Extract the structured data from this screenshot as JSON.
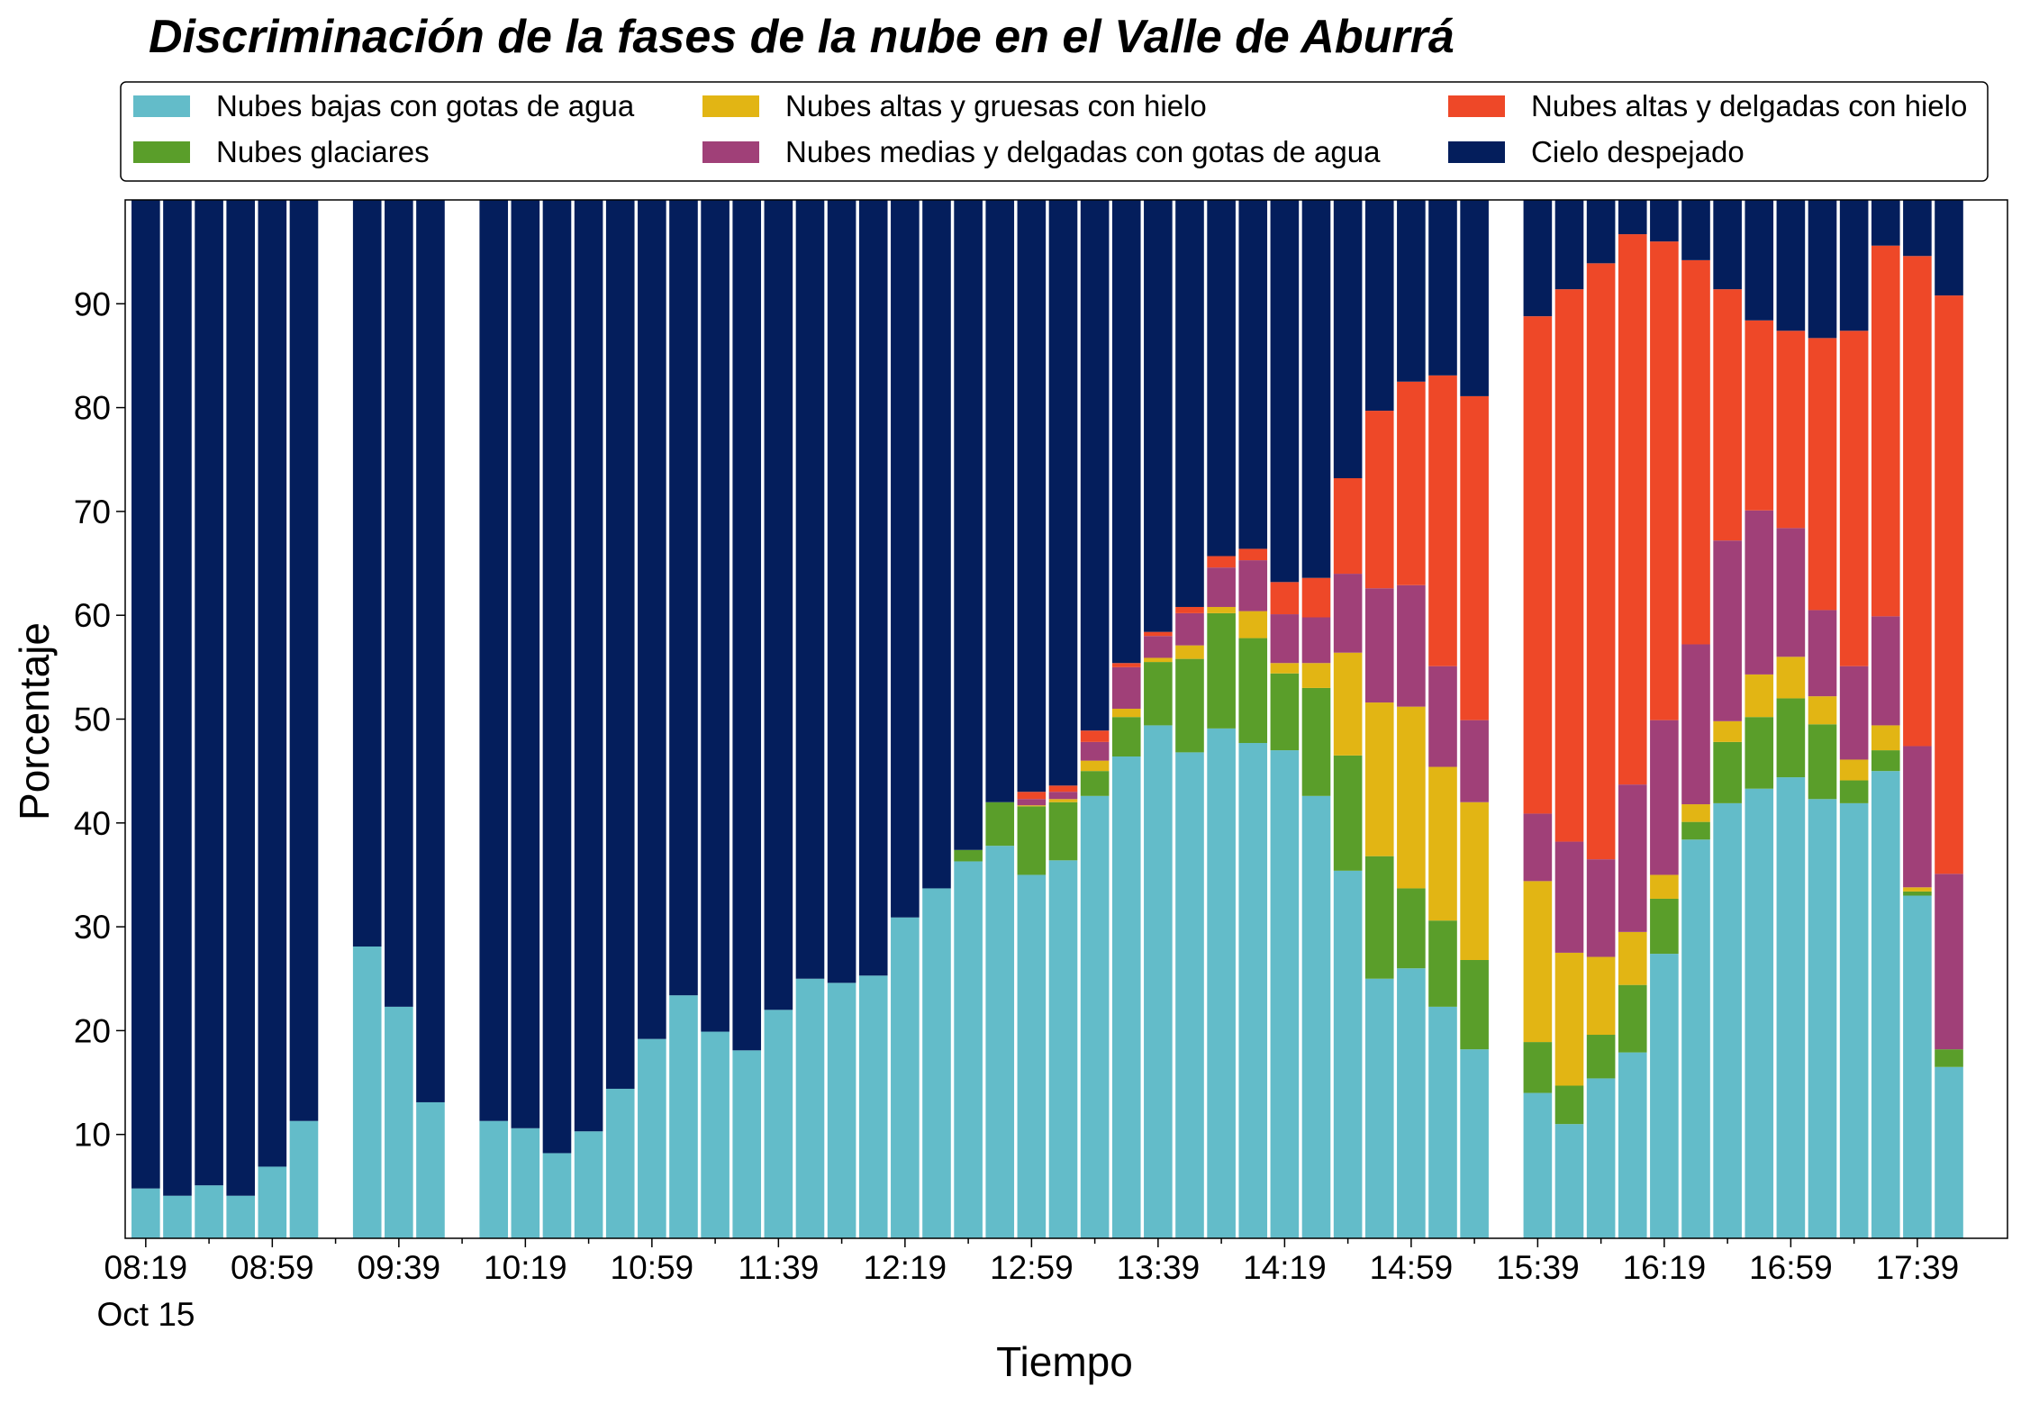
{
  "chart_data": {
    "type": "stacked_bar",
    "title": "Discriminación de la fases de la nube en el Valle de Aburrá",
    "xlabel": "Tiempo",
    "ylabel": "Porcentaje",
    "date_label": "Oct 15",
    "categories": [
      "08:19",
      null,
      null,
      null,
      "08:59",
      null,
      null,
      null,
      "09:39",
      null,
      null,
      null,
      "10:19",
      null,
      null,
      null,
      "10:59",
      null,
      null,
      null,
      "11:39",
      null,
      null,
      null,
      "12:19",
      null,
      null,
      null,
      "12:59",
      null,
      null,
      null,
      "13:39",
      null,
      null,
      null,
      "14:19",
      null,
      null,
      null,
      "14:59",
      null,
      null,
      null,
      "15:39",
      null,
      null,
      null,
      "16:19",
      null,
      null,
      null,
      "16:59",
      null,
      null,
      null,
      "17:39",
      null
    ],
    "series": [
      {
        "name": "Nubes bajas con gotas de agua",
        "color": "#63bcc9",
        "values": [
          4.8,
          4.1,
          5.1,
          4.1,
          6.9,
          11.3,
          null,
          28.1,
          22.3,
          13.1,
          null,
          11.3,
          10.6,
          8.2,
          10.3,
          14.4,
          19.2,
          23.4,
          19.9,
          18.1,
          22.0,
          25.0,
          24.6,
          25.3,
          30.9,
          33.7,
          36.3,
          37.8,
          35.0,
          36.4,
          42.6,
          46.4,
          49.4,
          46.8,
          49.1,
          47.7,
          47.0,
          42.6,
          35.4,
          25.0,
          26.0,
          22.3,
          18.2,
          null,
          14.0,
          11.0,
          15.4,
          17.9,
          27.4,
          38.4,
          41.9,
          43.3,
          44.4,
          42.3,
          41.9,
          45.0,
          33.0,
          16.5
        ]
      },
      {
        "name": "Nubes glaciares",
        "color": "#5a9e2a",
        "values": [
          0,
          0,
          0,
          0,
          0,
          0,
          null,
          0,
          0,
          0,
          null,
          0,
          0,
          0,
          0,
          0,
          0,
          0,
          0,
          0,
          0,
          0,
          0,
          0,
          0,
          0,
          1.1,
          4.2,
          6.6,
          5.6,
          2.4,
          3.8,
          6.1,
          9,
          11.1,
          10.1,
          7.4,
          10.4,
          11.1,
          11.8,
          7.7,
          8.3,
          8.6,
          null,
          4.9,
          3.7,
          4.2,
          6.5,
          5.3,
          1.7,
          5.9,
          6.9,
          7.6,
          7.2,
          2.2,
          2,
          0.4,
          1.7
        ]
      },
      {
        "name": "Nubes altas y gruesas con hielo",
        "color": "#e2b514",
        "values": [
          0,
          0,
          0,
          0,
          0,
          0,
          null,
          0,
          0,
          0,
          null,
          0,
          0,
          0,
          0,
          0,
          0,
          0,
          0,
          0,
          0,
          0,
          0,
          0,
          0,
          0,
          0,
          0,
          0.1,
          0.3,
          1,
          0.8,
          0.4,
          1.3,
          0.6,
          2.6,
          1,
          2.4,
          9.9,
          14.8,
          17.5,
          14.8,
          15.2,
          null,
          15.5,
          12.8,
          7.5,
          5.1,
          2.3,
          1.7,
          2,
          4.1,
          4,
          2.7,
          2,
          2.4,
          0.4,
          0
        ]
      },
      {
        "name": "Nubes medias y delgadas con gotas de agua",
        "color": "#a04078",
        "values": [
          0,
          0,
          0,
          0,
          0,
          0,
          null,
          0,
          0,
          0,
          null,
          0,
          0,
          0,
          0,
          0,
          0,
          0,
          0,
          0,
          0,
          0,
          0,
          0,
          0,
          0,
          0,
          0,
          0.6,
          0.7,
          1.8,
          4,
          2.1,
          3.1,
          3.8,
          4.9,
          4.7,
          4.4,
          7.6,
          11,
          11.7,
          9.7,
          7.9,
          null,
          6.5,
          10.7,
          9.4,
          14.2,
          14.9,
          15.4,
          17.4,
          15.8,
          12.4,
          8.3,
          9,
          10.5,
          13.6,
          16.9
        ]
      },
      {
        "name": "Nubes altas y delgadas con hielo",
        "color": "#ee4828",
        "values": [
          0,
          0,
          0,
          0,
          0,
          0,
          null,
          0,
          0,
          0,
          null,
          0,
          0,
          0,
          0,
          0,
          0,
          0,
          0,
          0,
          0,
          0,
          0,
          0,
          0,
          0,
          0,
          0,
          0.7,
          0.6,
          1.1,
          0.4,
          0.4,
          0.6,
          1.1,
          1.1,
          3.1,
          3.8,
          9.2,
          17.1,
          19.6,
          28,
          31.2,
          null,
          47.9,
          53.2,
          57.4,
          53,
          46.1,
          37,
          24.2,
          18.3,
          19,
          26.2,
          32.3,
          35.7,
          47.2,
          55.7
        ]
      },
      {
        "name": "Cielo despejado",
        "color": "#041e5c",
        "values": [
          95.2,
          95.9,
          94.9,
          95.9,
          93.1,
          88.7,
          null,
          71.9,
          77.7,
          86.9,
          null,
          88.7,
          89.4,
          91.8,
          89.7,
          85.6,
          80.8,
          76.6,
          80.1,
          81.9,
          78,
          75,
          75.4,
          74.7,
          69.1,
          66.3,
          62.6,
          58,
          57,
          56.4,
          51.1,
          44.6,
          41.6,
          39.2,
          34.3,
          33.6,
          36.8,
          36.4,
          26.8,
          20.3,
          17.5,
          16.9,
          18.9,
          null,
          11.2,
          8.6,
          6.1,
          3.3,
          4,
          5.8,
          8.6,
          11.6,
          12.6,
          13.3,
          12.6,
          4.4,
          5.4,
          9.2
        ]
      }
    ],
    "ylim": [
      0,
      100
    ],
    "yticks": [
      10,
      20,
      30,
      40,
      50,
      60,
      70,
      80,
      90
    ],
    "grid": false,
    "legend": "top"
  }
}
